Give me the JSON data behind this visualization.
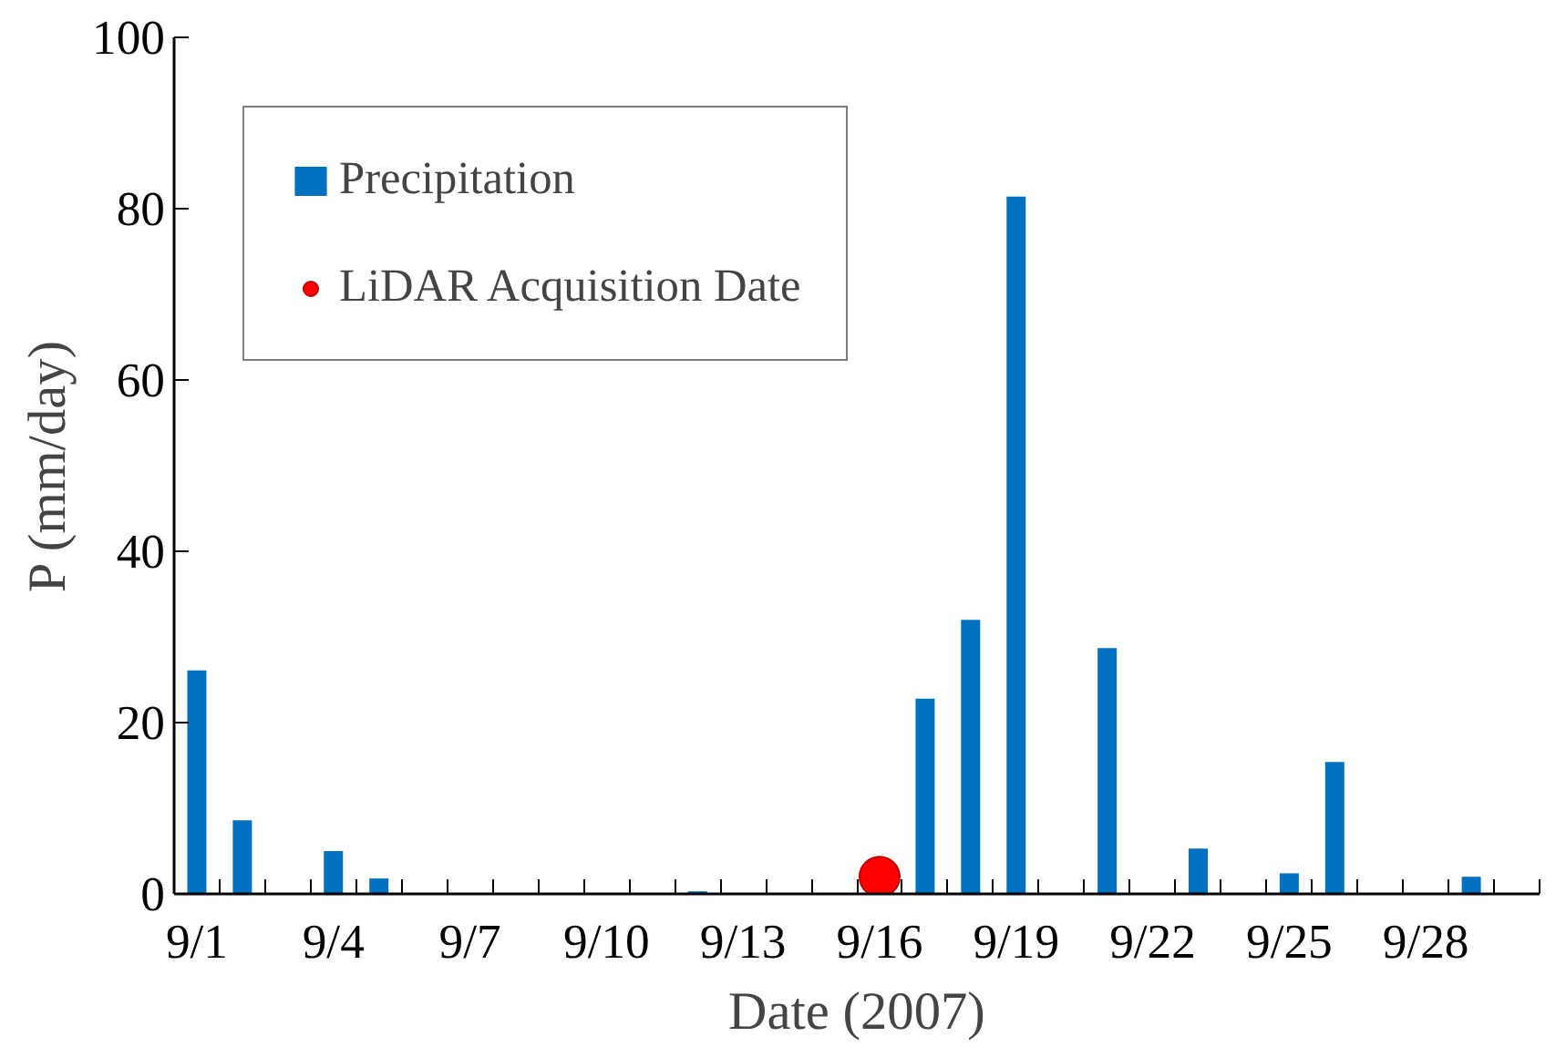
{
  "chart_data": {
    "type": "bar",
    "xlabel": "Date (2007)",
    "ylabel": "P (mm/day)",
    "categories": [
      "9/1",
      null,
      null,
      "9/4",
      null,
      null,
      "9/7",
      null,
      null,
      "9/10",
      null,
      null,
      "9/13",
      null,
      null,
      "9/16",
      null,
      null,
      "9/19",
      null,
      null,
      "9/22",
      null,
      null,
      "9/25",
      null,
      null,
      "9/28",
      null,
      null
    ],
    "series": [
      {
        "name": "Precipitation",
        "color": "#0070c0",
        "values": [
          26.1,
          8.6,
          0,
          5.0,
          1.8,
          0,
          0,
          0,
          0,
          0,
          0,
          0.3,
          0,
          0,
          0,
          0,
          22.8,
          32,
          81.4,
          0,
          28.7,
          0,
          5.3,
          0,
          2.4,
          15.4,
          0,
          0,
          2.0,
          0
        ]
      },
      {
        "name": "LiDAR Acquisition Date",
        "type": "scatter",
        "color": "#ff0000",
        "marker": "circle",
        "x": [
          "9/16"
        ],
        "values": [
          2
        ]
      }
    ],
    "ylim": [
      0,
      100
    ],
    "yticks": [
      0,
      20,
      40,
      60,
      80,
      100
    ],
    "grid": false,
    "legend": "top left"
  }
}
